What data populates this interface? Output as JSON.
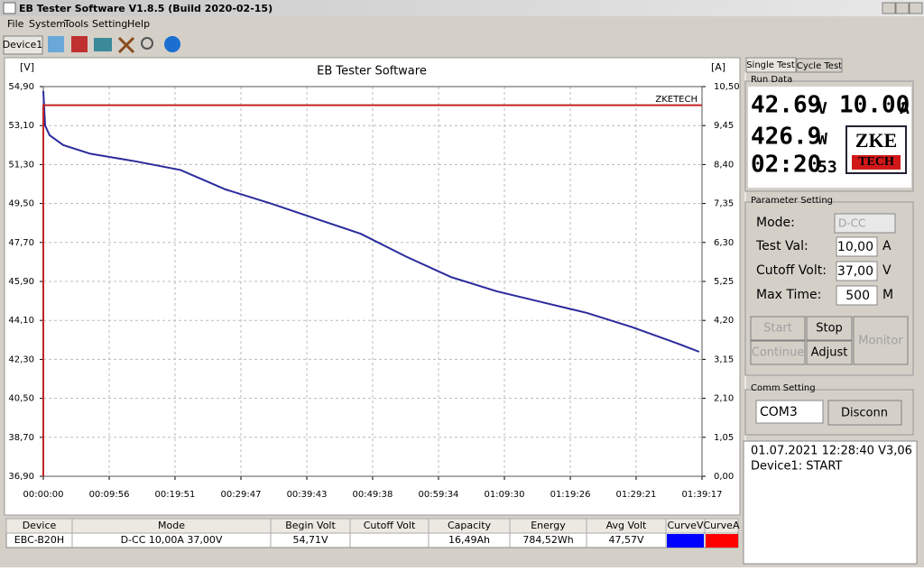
{
  "window": {
    "title": "EB Tester Software V1.8.5 (Build 2020-02-15)",
    "menu": [
      "File",
      "System",
      "Tools",
      "Setting",
      "Help"
    ]
  },
  "toolbar": {
    "device_tab": "Device1"
  },
  "chart_data": {
    "type": "line",
    "title": "EB Tester Software",
    "y_label": "[V]",
    "y2_label": "[A]",
    "watermark": "ZKETECH",
    "grid": true,
    "xlim": [
      0,
      5957
    ],
    "xticks": [
      {
        "value": 0,
        "label": "00:00:00"
      },
      {
        "value": 596,
        "label": "00:09:56"
      },
      {
        "value": 1191,
        "label": "00:19:51"
      },
      {
        "value": 1787,
        "label": "00:29:47"
      },
      {
        "value": 2383,
        "label": "00:39:43"
      },
      {
        "value": 2978,
        "label": "00:49:38"
      },
      {
        "value": 3574,
        "label": "00:59:34"
      },
      {
        "value": 4170,
        "label": "01:09:30"
      },
      {
        "value": 4766,
        "label": "01:19:26"
      },
      {
        "value": 5361,
        "label": "01:29:21"
      },
      {
        "value": 5957,
        "label": "01:39:17"
      }
    ],
    "ylim": [
      36.9,
      54.9
    ],
    "yticks": [
      {
        "value": 54.9,
        "label": "54,90"
      },
      {
        "value": 53.1,
        "label": "53,10"
      },
      {
        "value": 51.3,
        "label": "51,30"
      },
      {
        "value": 49.5,
        "label": "49,50"
      },
      {
        "value": 47.7,
        "label": "47,70"
      },
      {
        "value": 45.9,
        "label": "45,90"
      },
      {
        "value": 44.1,
        "label": "44,10"
      },
      {
        "value": 42.3,
        "label": "42,30"
      },
      {
        "value": 40.5,
        "label": "40,50"
      },
      {
        "value": 38.7,
        "label": "38,70"
      },
      {
        "value": 36.9,
        "label": "36,90"
      }
    ],
    "y2lim": [
      0,
      10.5
    ],
    "y2ticks": [
      {
        "value": 10.5,
        "label": "10,50"
      },
      {
        "value": 9.45,
        "label": "9,45"
      },
      {
        "value": 8.4,
        "label": "8,40"
      },
      {
        "value": 7.35,
        "label": "7,35"
      },
      {
        "value": 6.3,
        "label": "6,30"
      },
      {
        "value": 5.25,
        "label": "5,25"
      },
      {
        "value": 4.2,
        "label": "4,20"
      },
      {
        "value": 3.15,
        "label": "3,15"
      },
      {
        "value": 2.1,
        "label": "2,10"
      },
      {
        "value": 1.05,
        "label": "1,05"
      },
      {
        "value": 0,
        "label": "0,00"
      }
    ],
    "series": [
      {
        "color": "#2a2a9c",
        "x": [
          0,
          16,
          57,
          180,
          424,
          832,
          1240,
          1648,
          2056,
          2464,
          2872,
          3280,
          3688,
          4097,
          4504,
          4913,
          5320,
          5728,
          5932
        ],
        "values": [
          54.7,
          53.1,
          52.65,
          52.2,
          51.8,
          51.45,
          51.05,
          50.15,
          49.5,
          48.8,
          48.1,
          47.05,
          46.1,
          45.45,
          44.95,
          44.45,
          43.8,
          43.05,
          42.65
        ]
      },
      {
        "color": "#c42424",
        "axis": "y2",
        "x": [
          0,
          0,
          5957
        ],
        "values": [
          0,
          10,
          10
        ]
      }
    ]
  },
  "table": {
    "headers": [
      "Device",
      "Mode",
      "Begin Volt",
      "Cutoff Volt",
      "Capacity",
      "Energy",
      "Avg Volt",
      "CurveV",
      "CurveA"
    ],
    "row": {
      "device": "EBC-B20H",
      "mode": "D-CC  10,00A  37,00V",
      "begin_volt": "54,71V",
      "capacity": "16,49Ah",
      "energy": "784,52Wh",
      "avg_volt": "47,57V",
      "curve_v_color": "#0000ff",
      "curve_a_color": "#ff0000"
    }
  },
  "right_panel": {
    "tabs": [
      "Single Test",
      "Cycle Test"
    ],
    "run_data": {
      "label": "Run Data",
      "voltage": "42.69",
      "voltage_unit": "V",
      "current": "10.00",
      "current_unit": "A",
      "power": "426.9",
      "power_unit": "W",
      "time": "02:20",
      "time_seconds": "53",
      "logo_top": "ZKE",
      "logo_bottom": "TECH"
    },
    "parameters": {
      "label": "Parameter Setting",
      "mode_label": "Mode:",
      "mode": "D-CC",
      "test_val_label": "Test Val:",
      "test_val": "10,00",
      "test_val_unit": "A",
      "cutoff_label": "Cutoff Volt:",
      "cutoff": "37,00",
      "cutoff_unit": "V",
      "max_time_label": "Max Time:",
      "max_time": "500",
      "max_time_unit": "M"
    },
    "buttons": {
      "start": "Start",
      "stop": "Stop",
      "monitor": "Monitor",
      "continue": "Continue",
      "adjust": "Adjust"
    },
    "comm": {
      "label": "Comm Setting",
      "port": "COM3",
      "disconnect": "Disconn"
    },
    "log": [
      "01.07.2021 12:28:40  V3,06",
      "Device1: START"
    ]
  }
}
